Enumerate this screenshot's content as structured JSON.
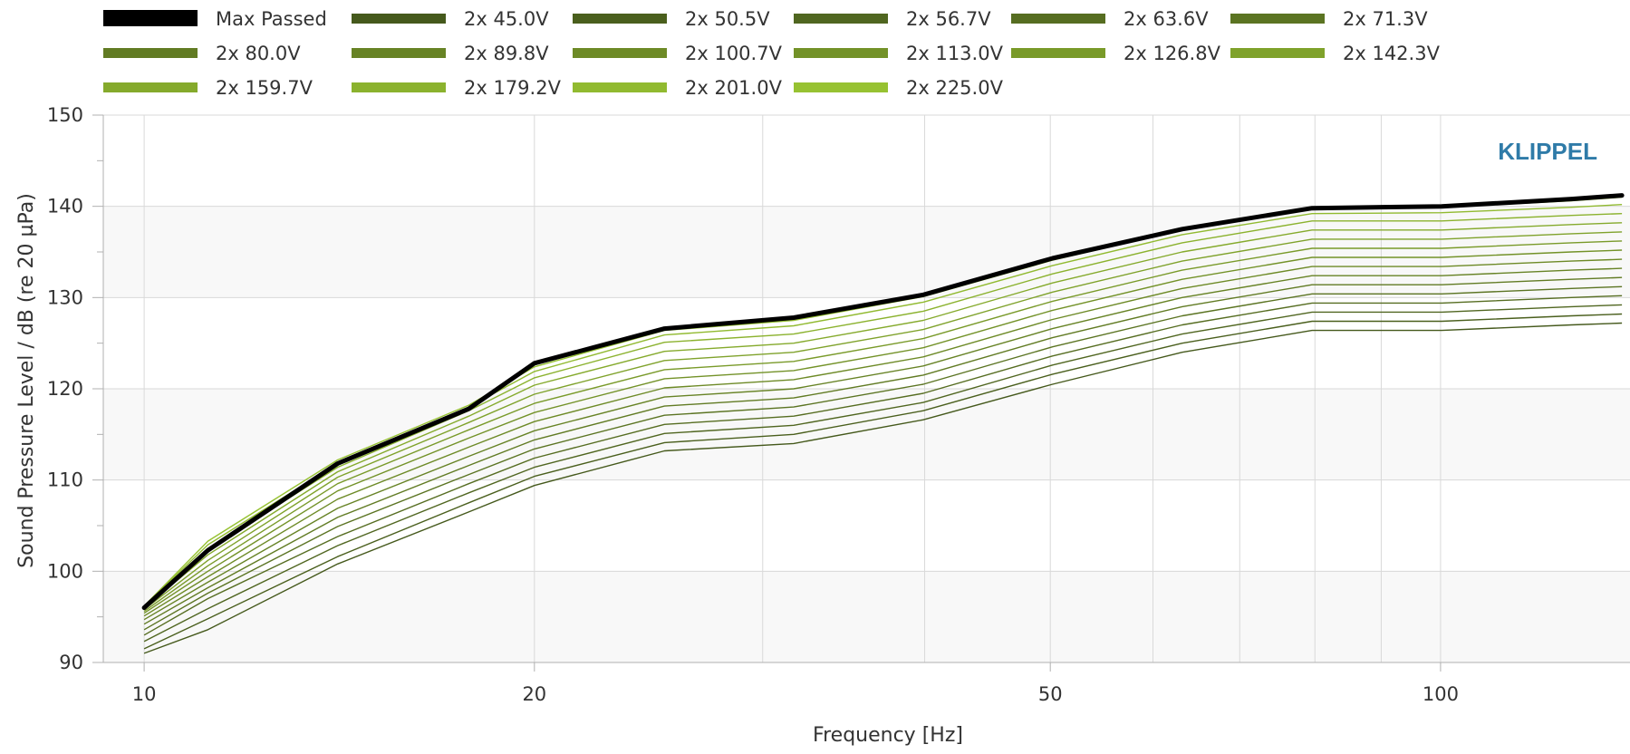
{
  "chart_data": {
    "type": "line",
    "title": "",
    "xlabel": "Frequency [Hz]",
    "ylabel": "Sound Pressure Level / dB (re 20 µPa)",
    "x_scale": "log",
    "xlim": [
      9.3,
      140
    ],
    "ylim": [
      90,
      150
    ],
    "x_ticks": [
      10,
      20,
      50,
      100
    ],
    "x_tick_labels": [
      "10",
      "20",
      "50",
      "100"
    ],
    "y_ticks": [
      90,
      100,
      110,
      120,
      130,
      140,
      150
    ],
    "y_tick_labels": [
      "90",
      "100",
      "110",
      "120",
      "130",
      "140",
      "150"
    ],
    "grid": true,
    "legend_position": "top",
    "watermark": "KLIPPEL",
    "x": [
      10,
      11.2,
      14.1,
      17.8,
      20,
      25.2,
      31.7,
      39.9,
      50.2,
      63.2,
      79.6,
      100.2,
      126.2,
      138
    ],
    "series": [
      {
        "name": "Max Passed",
        "color": "#000000",
        "values": [
          96.0,
          102.3,
          111.8,
          117.8,
          122.8,
          126.6,
          127.8,
          130.3,
          134.3,
          137.5,
          139.8,
          140.0,
          140.8,
          141.2
        ]
      },
      {
        "name": "2x 45.0V",
        "color": "#45591c",
        "values": [
          91.0,
          93.6,
          100.8,
          106.5,
          109.4,
          113.2,
          114.0,
          116.6,
          120.5,
          124.0,
          126.4,
          126.4,
          127.0,
          127.2
        ]
      },
      {
        "name": "2x 50.5V",
        "color": "#4a5f1d",
        "values": [
          91.5,
          94.8,
          101.6,
          107.5,
          110.4,
          114.1,
          115.0,
          117.6,
          121.6,
          125.0,
          127.4,
          127.4,
          128.0,
          128.2
        ]
      },
      {
        "name": "2x 56.7V",
        "color": "#506620",
        "values": [
          92.3,
          95.9,
          102.8,
          108.6,
          111.4,
          115.1,
          116.0,
          118.5,
          122.6,
          126.0,
          128.4,
          128.4,
          129.0,
          129.2
        ]
      },
      {
        "name": "2x 63.6V",
        "color": "#566d21",
        "values": [
          93.0,
          97.0,
          103.8,
          109.6,
          112.4,
          116.1,
          117.0,
          119.5,
          123.6,
          127.0,
          129.4,
          129.4,
          130.0,
          130.2
        ]
      },
      {
        "name": "2x 71.3V",
        "color": "#5b7422",
        "values": [
          93.6,
          97.6,
          104.9,
          110.6,
          113.4,
          117.1,
          118.0,
          120.5,
          124.6,
          128.0,
          130.4,
          130.4,
          131.0,
          131.2
        ]
      },
      {
        "name": "2x 80.0V",
        "color": "#617b23",
        "values": [
          94.2,
          98.2,
          105.9,
          111.6,
          114.4,
          118.1,
          119.0,
          121.5,
          125.6,
          129.0,
          131.4,
          131.4,
          132.0,
          132.2
        ]
      },
      {
        "name": "2x 89.8V",
        "color": "#678325",
        "values": [
          94.7,
          98.8,
          106.9,
          112.6,
          115.4,
          119.1,
          120.0,
          122.5,
          126.6,
          130.0,
          132.4,
          132.4,
          133.0,
          133.2
        ]
      },
      {
        "name": "2x 100.7V",
        "color": "#6d8a26",
        "values": [
          95.1,
          99.4,
          107.9,
          113.6,
          116.4,
          120.1,
          121.0,
          123.5,
          127.6,
          131.0,
          133.4,
          133.4,
          134.0,
          134.2
        ]
      },
      {
        "name": "2x 113.0V",
        "color": "#739228",
        "values": [
          95.4,
          100.0,
          108.8,
          114.6,
          117.4,
          121.1,
          122.0,
          124.5,
          128.6,
          132.0,
          134.4,
          134.4,
          135.0,
          135.2
        ]
      },
      {
        "name": "2x 126.8V",
        "color": "#799a29",
        "values": [
          95.6,
          100.6,
          109.6,
          115.5,
          118.4,
          122.1,
          123.0,
          125.5,
          129.6,
          133.0,
          135.4,
          135.4,
          136.0,
          136.2
        ]
      },
      {
        "name": "2x 142.3V",
        "color": "#7fa22b",
        "values": [
          95.8,
          101.2,
          110.3,
          116.3,
          119.4,
          123.1,
          124.0,
          126.5,
          130.6,
          134.0,
          136.4,
          136.4,
          137.0,
          137.2
        ]
      },
      {
        "name": "2x 159.7V",
        "color": "#85aa2c",
        "values": [
          96.0,
          101.8,
          110.9,
          117.0,
          120.4,
          124.1,
          125.0,
          127.5,
          131.6,
          135.0,
          137.4,
          137.4,
          138.0,
          138.2
        ]
      },
      {
        "name": "2x 179.2V",
        "color": "#8bb22e",
        "values": [
          96.1,
          102.4,
          111.4,
          117.6,
          121.2,
          125.1,
          126.0,
          128.5,
          132.6,
          136.0,
          138.4,
          138.4,
          139.0,
          139.2
        ]
      },
      {
        "name": "2x 201.0V",
        "color": "#91ba30",
        "values": [
          96.2,
          102.9,
          111.8,
          118.0,
          121.9,
          125.9,
          126.9,
          129.5,
          133.5,
          136.9,
          139.2,
          139.3,
          139.9,
          140.2
        ]
      },
      {
        "name": "2x 225.0V",
        "color": "#97c232",
        "values": [
          96.2,
          103.3,
          112.2,
          118.2,
          122.4,
          126.4,
          127.5,
          130.1,
          134.1,
          137.4,
          139.7,
          139.9,
          140.6,
          141.0
        ]
      }
    ]
  }
}
